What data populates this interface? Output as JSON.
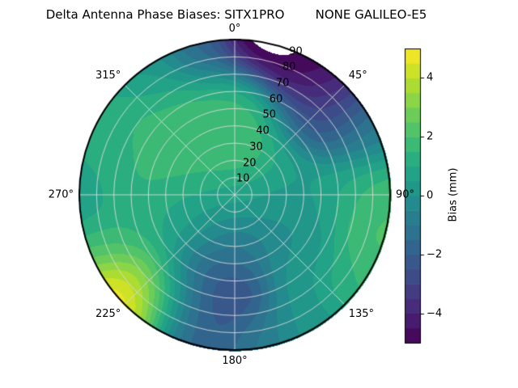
{
  "title": "Delta Antenna Phase Biases: SITX1PRO        NONE GALILEO-E5",
  "colorbar": {
    "label": "Bias (mm)",
    "min": -5,
    "max": 5,
    "ticks": [
      {
        "label": "4",
        "value": 4
      },
      {
        "label": "2",
        "value": 2
      },
      {
        "label": "0",
        "value": 0
      },
      {
        "label": "−2",
        "value": -2
      },
      {
        "label": "−4",
        "value": -4
      }
    ]
  },
  "polar": {
    "azimuth_ticks": [
      "0°",
      "45°",
      "90°",
      "135°",
      "180°",
      "225°",
      "270°",
      "315°"
    ],
    "radial_ticks": [
      10,
      20,
      30,
      40,
      50,
      60,
      70,
      80,
      90
    ]
  },
  "chart_data": {
    "type": "heatmap",
    "projection": "polar",
    "title": "Delta Antenna Phase Biases: SITX1PRO        NONE GALILEO-E5",
    "colormap": "viridis",
    "value_label": "Bias (mm)",
    "value_range": [
      -5,
      5
    ],
    "contour_step": 0.5,
    "azimuth_zero": "top",
    "azimuth_direction": "clockwise",
    "azimuth_ticks_deg": [
      0,
      45,
      90,
      135,
      180,
      225,
      270,
      315
    ],
    "zenith_ticks_deg": [
      10,
      20,
      30,
      40,
      50,
      60,
      70,
      80,
      90
    ],
    "point_format": [
      "azimuth_deg",
      "zenith_deg",
      "bias_mm"
    ],
    "points": [
      [
        0,
        0,
        0.6
      ],
      [
        20,
        30,
        2.6
      ],
      [
        5,
        45,
        2.2
      ],
      [
        350,
        25,
        1.8
      ],
      [
        330,
        50,
        2.0
      ],
      [
        60,
        25,
        0.8
      ],
      [
        90,
        30,
        0.3
      ],
      [
        120,
        30,
        -0.3
      ],
      [
        180,
        30,
        -1.2
      ],
      [
        240,
        30,
        0.6
      ],
      [
        300,
        35,
        1.6
      ],
      [
        0,
        58,
        1.4
      ],
      [
        40,
        55,
        -1.8
      ],
      [
        90,
        55,
        0.8
      ],
      [
        135,
        55,
        0.2
      ],
      [
        185,
        60,
        -2.9
      ],
      [
        210,
        55,
        -1.8
      ],
      [
        250,
        55,
        1.2
      ],
      [
        280,
        60,
        1.6
      ],
      [
        315,
        60,
        2.0
      ],
      [
        8,
        89,
        -6.0
      ],
      [
        20,
        84,
        -5.0
      ],
      [
        35,
        80,
        -4.8
      ],
      [
        50,
        76,
        -3.0
      ],
      [
        65,
        80,
        -0.5
      ],
      [
        90,
        80,
        1.8
      ],
      [
        103,
        87,
        2.2
      ],
      [
        125,
        83,
        1.6
      ],
      [
        150,
        84,
        0.2
      ],
      [
        172,
        86,
        -0.8
      ],
      [
        192,
        82,
        -2.2
      ],
      [
        207,
        78,
        -0.5
      ],
      [
        223,
        70,
        3.0
      ],
      [
        225,
        84,
        4.6
      ],
      [
        228,
        90,
        6.3
      ],
      [
        245,
        80,
        1.8
      ],
      [
        270,
        87,
        0.6
      ],
      [
        295,
        80,
        1.2
      ],
      [
        325,
        80,
        0.3
      ],
      [
        348,
        86,
        -1.6
      ]
    ]
  }
}
